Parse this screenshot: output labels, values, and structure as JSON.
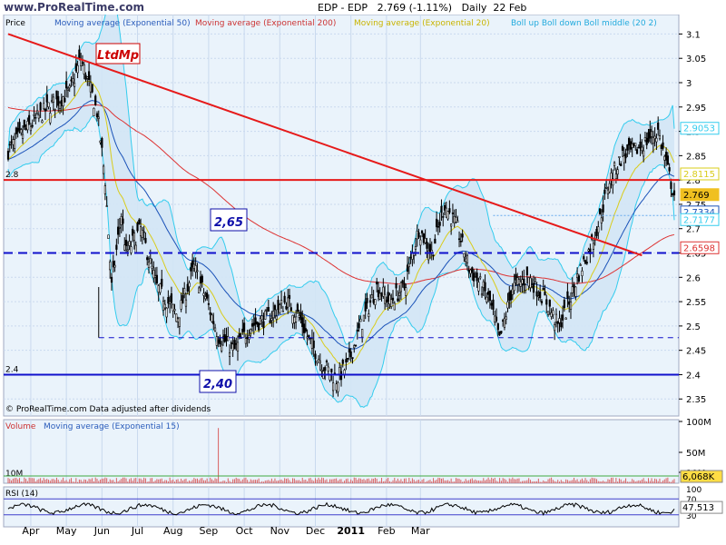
{
  "header": {
    "site": "www.ProRealTime.com",
    "instrument": "EDP - EDP",
    "last": "2.769 (-1.11%)",
    "period": "Daily",
    "date": "22 Feb"
  },
  "colors": {
    "panel_bg": "#eaf3fb",
    "grid": "#c9d9ee",
    "boll": "#33ccee",
    "ema50": "#1a52b8",
    "ema200": "#dd3333",
    "ema20": "#d9cc1a",
    "trend_red": "#e61a1a",
    "support_blue": "#1010cc",
    "bull": "#000000",
    "volume_bar": "#d96060",
    "volume_avg": "#40aa40",
    "rsi_line": "#000000"
  },
  "chart_data": [
    {
      "type": "candlestick",
      "title": "EDP - EDP  2.769 (-1.11%)  Daily  22 Feb",
      "panel_label": "Price",
      "legend": [
        {
          "label": "Moving average (Exponential 50)",
          "color": "#2a5cbb"
        },
        {
          "label": "Moving average (Exponential 200)",
          "color": "#cc3333"
        },
        {
          "label": "Moving average (Exponential 20)",
          "color": "#c8b400"
        },
        {
          "label": "Boll up Boll down Boll middle (20 2)",
          "color": "#22aadd"
        }
      ],
      "x_months": [
        "Apr",
        "May",
        "Jun",
        "Jul",
        "Aug",
        "Sep",
        "Oct",
        "Nov",
        "Dec",
        "2011",
        "Feb",
        "Mar"
      ],
      "y_ticks": [
        3.1,
        3.05,
        3.0,
        2.95,
        2.9,
        2.85,
        2.8,
        2.75,
        2.7,
        2.65,
        2.6,
        2.55,
        2.5,
        2.45,
        2.4,
        2.35
      ],
      "y_tick_labels": [
        "3.1",
        "3.05",
        "3",
        "2.95",
        "2.9",
        "2.85",
        "2.8",
        "2.75",
        "2.7",
        "2.65",
        "2.6",
        "2.55",
        "2.5",
        "2.45",
        "2.4",
        "2.35"
      ],
      "ylim": [
        2.315,
        3.14
      ],
      "close_anchors": [
        [
          0,
          2.86
        ],
        [
          10,
          2.9
        ],
        [
          25,
          2.95
        ],
        [
          38,
          2.98
        ],
        [
          45,
          3.05
        ],
        [
          55,
          2.94
        ],
        [
          60,
          2.8
        ],
        [
          64,
          2.58
        ],
        [
          70,
          2.73
        ],
        [
          73,
          2.65
        ],
        [
          82,
          2.7
        ],
        [
          92,
          2.58
        ],
        [
          105,
          2.52
        ],
        [
          115,
          2.62
        ],
        [
          122,
          2.56
        ],
        [
          130,
          2.48
        ],
        [
          140,
          2.45
        ],
        [
          150,
          2.5
        ],
        [
          162,
          2.52
        ],
        [
          172,
          2.55
        ],
        [
          180,
          2.52
        ],
        [
          186,
          2.47
        ],
        [
          195,
          2.42
        ],
        [
          203,
          2.39
        ],
        [
          210,
          2.42
        ],
        [
          218,
          2.5
        ],
        [
          228,
          2.58
        ],
        [
          236,
          2.55
        ],
        [
          245,
          2.58
        ],
        [
          254,
          2.7
        ],
        [
          262,
          2.65
        ],
        [
          270,
          2.75
        ],
        [
          278,
          2.7
        ],
        [
          285,
          2.62
        ],
        [
          293,
          2.58
        ],
        [
          298,
          2.55
        ],
        [
          304,
          2.47
        ],
        [
          312,
          2.58
        ],
        [
          322,
          2.6
        ],
        [
          333,
          2.55
        ],
        [
          340,
          2.5
        ],
        [
          345,
          2.53
        ],
        [
          352,
          2.6
        ],
        [
          360,
          2.66
        ],
        [
          366,
          2.72
        ],
        [
          372,
          2.8
        ],
        [
          380,
          2.85
        ],
        [
          388,
          2.86
        ],
        [
          395,
          2.88
        ],
        [
          402,
          2.9
        ],
        [
          408,
          2.82
        ],
        [
          412,
          2.769
        ]
      ],
      "bands": {
        "up": 2.9053,
        "down": 2.7177
      },
      "ema20": 2.8115,
      "ema50": 2.7334,
      "ema200": 2.6598,
      "price_label_values": [
        {
          "value": "2.9053",
          "y": 2.9053,
          "color": "#33ccee"
        },
        {
          "value": "2.8115",
          "y": 2.8115,
          "color": "#d9cc1a"
        },
        {
          "value": "2.769",
          "y": 2.769,
          "color": "#f0c020"
        },
        {
          "value": "2.7334",
          "y": 2.7334,
          "color": "#1a52b8"
        },
        {
          "value": "2.7177",
          "y": 2.7177,
          "color": "#33ccee"
        },
        {
          "value": "2.6598",
          "y": 2.6598,
          "color": "#dd3333"
        }
      ],
      "horizontal_lines": [
        {
          "price": 2.8,
          "label": "2.8",
          "color": "#e61a1a",
          "style": "solid"
        },
        {
          "price": 2.65,
          "label": "",
          "color": "#1010cc",
          "style": "dashed"
        },
        {
          "price": 2.476,
          "label": "",
          "color": "#1010cc",
          "style": "dashed-thin"
        },
        {
          "price": 2.4,
          "label": "2.4",
          "color": "#1010cc",
          "style": "solid"
        },
        {
          "price": 2.727,
          "label": "",
          "color": "#66aaee",
          "style": "dotted"
        }
      ],
      "trendline": {
        "from": [
          0,
          3.1
        ],
        "to": [
          392,
          2.645
        ]
      },
      "annotations": [
        {
          "text": "LtdMp",
          "color": "#cc0000"
        },
        {
          "text": "2,65",
          "color": "#1010aa"
        },
        {
          "text": "2,40",
          "color": "#1010aa"
        }
      ],
      "footer_note": "© ProRealTime.com  Data adjusted after dividends"
    },
    {
      "type": "bar",
      "title": "Volume  Moving average (Exponential 15)",
      "y_tick_labels": [
        "100M",
        "50M",
        "10M"
      ],
      "ylim": [
        0,
        100
      ],
      "spike_value": 95,
      "last_label": "6,068K"
    },
    {
      "type": "line",
      "title": "RSI (14)",
      "ylim": [
        0,
        100
      ],
      "y_tick_labels": [
        "100",
        "70",
        "30"
      ],
      "last_label": "47.513"
    }
  ]
}
